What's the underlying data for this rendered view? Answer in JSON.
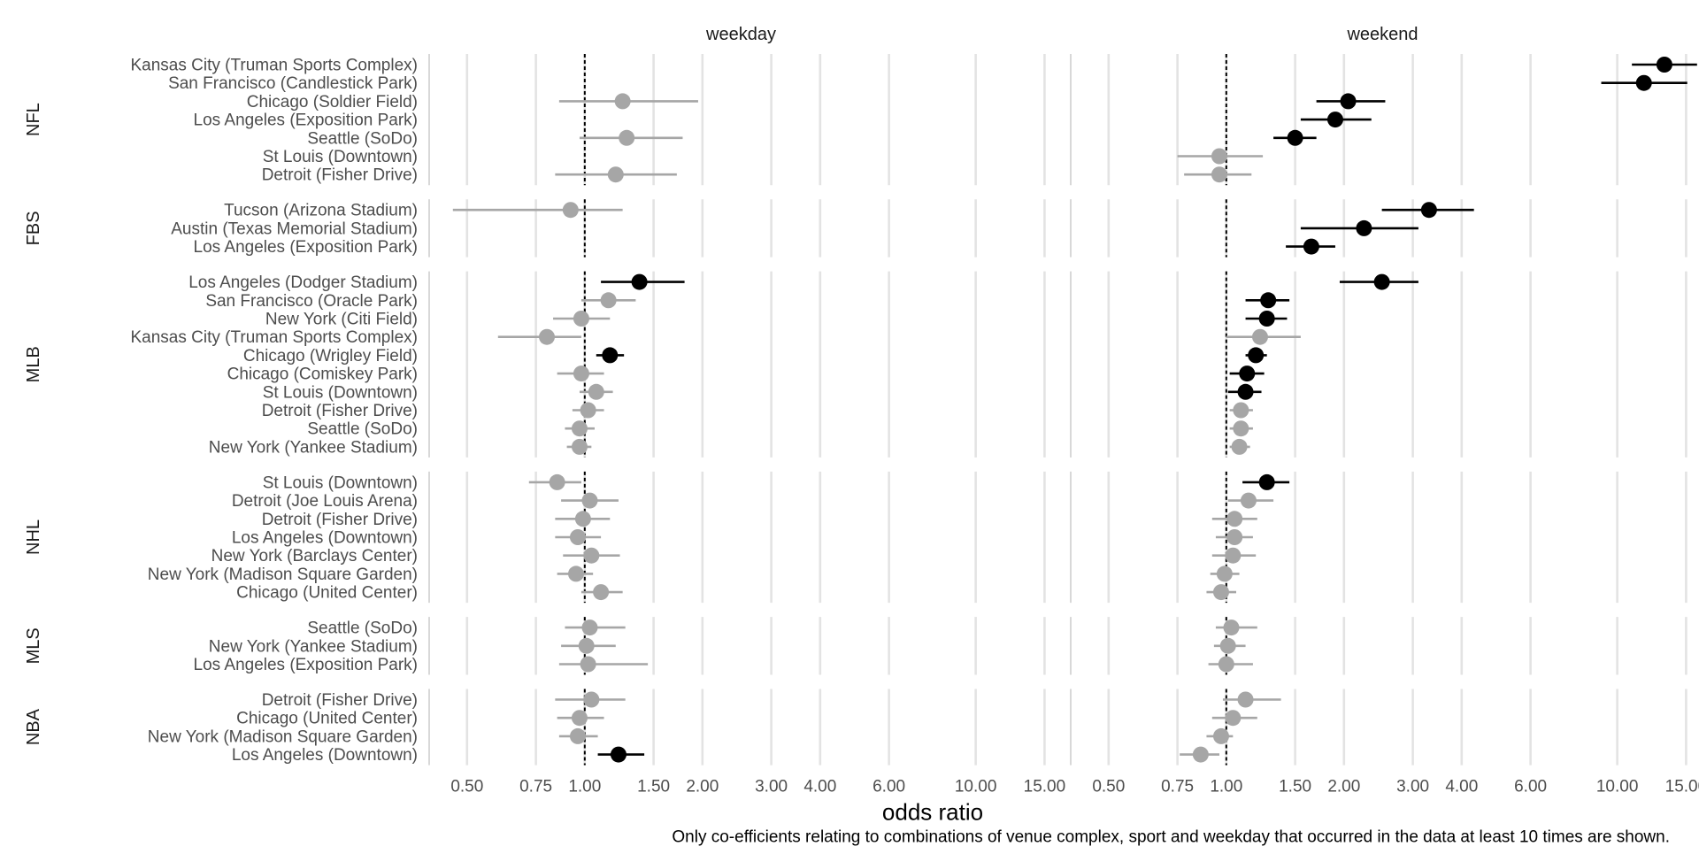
{
  "chart_data": {
    "type": "scatter",
    "subtype": "forest-plot (point estimate with confidence interval)",
    "x_scale": "log",
    "xlabel": "odds ratio",
    "caption": "Only co-efficients relating to combinations of venue complex, sport and weekday that occurred in the data at least 10 times are shown.",
    "x_ticks": [
      0.5,
      0.75,
      1,
      1.5,
      2,
      3,
      4,
      6,
      10,
      15
    ],
    "x_tick_labels": [
      "0.50",
      "0.75",
      "1.00",
      "1.50",
      "2.00",
      "3.00",
      "4.00",
      "6.00",
      "10.00",
      "15.00"
    ],
    "xlim": [
      0.4,
      17.5
    ],
    "reference_line": 1,
    "panels": [
      "weekday",
      "weekend"
    ],
    "legend_note": "black = significant, grey = not significant",
    "colors": {
      "significant": "#000000",
      "non_significant": "#a6a6a6",
      "grid": "#e3e3e3",
      "text": "#4d4d4d"
    },
    "groups": [
      {
        "sport": "NFL",
        "rows": [
          {
            "label": "Kansas City (Truman Sports Complex)",
            "weekday": null,
            "weekend": {
              "or": 13.2,
              "lo": 10.9,
              "hi": 16.0,
              "sig": true
            }
          },
          {
            "label": "San Francisco (Candlestick Park)",
            "weekday": null,
            "weekend": {
              "or": 11.7,
              "lo": 9.1,
              "hi": 15.1,
              "sig": true
            }
          },
          {
            "label": "Chicago (Soldier Field)",
            "weekday": {
              "or": 1.25,
              "lo": 0.86,
              "hi": 1.95,
              "sig": false
            },
            "weekend": {
              "or": 2.05,
              "lo": 1.7,
              "hi": 2.55,
              "sig": true
            }
          },
          {
            "label": "Los Angeles (Exposition Park)",
            "weekday": null,
            "weekend": {
              "or": 1.9,
              "lo": 1.55,
              "hi": 2.35,
              "sig": true
            }
          },
          {
            "label": "Seattle (SoDo)",
            "weekday": {
              "or": 1.28,
              "lo": 0.97,
              "hi": 1.78,
              "sig": false
            },
            "weekend": {
              "or": 1.5,
              "lo": 1.32,
              "hi": 1.7,
              "sig": true
            }
          },
          {
            "label": "St Louis (Downtown)",
            "weekday": null,
            "weekend": {
              "or": 0.96,
              "lo": 0.75,
              "hi": 1.24,
              "sig": false
            }
          },
          {
            "label": "Detroit (Fisher Drive)",
            "weekday": {
              "or": 1.2,
              "lo": 0.84,
              "hi": 1.72,
              "sig": false
            },
            "weekend": {
              "or": 0.96,
              "lo": 0.78,
              "hi": 1.16,
              "sig": false
            }
          }
        ]
      },
      {
        "sport": "FBS",
        "rows": [
          {
            "label": "Tucson (Arizona Stadium)",
            "weekday": {
              "or": 0.92,
              "lo": 0.46,
              "hi": 1.25,
              "sig": false
            },
            "weekend": {
              "or": 3.3,
              "lo": 2.5,
              "hi": 4.3,
              "sig": true
            }
          },
          {
            "label": "Austin (Texas Memorial Stadium)",
            "weekday": null,
            "weekend": {
              "or": 2.25,
              "lo": 1.55,
              "hi": 3.1,
              "sig": true
            }
          },
          {
            "label": "Los Angeles (Exposition Park)",
            "weekday": null,
            "weekend": {
              "or": 1.65,
              "lo": 1.42,
              "hi": 1.9,
              "sig": true
            }
          }
        ]
      },
      {
        "sport": "MLB",
        "rows": [
          {
            "label": "Los Angeles (Dodger Stadium)",
            "weekday": {
              "or": 1.38,
              "lo": 1.1,
              "hi": 1.8,
              "sig": true
            },
            "weekend": {
              "or": 2.5,
              "lo": 1.95,
              "hi": 3.1,
              "sig": true
            }
          },
          {
            "label": "San Francisco (Oracle Park)",
            "weekday": {
              "or": 1.15,
              "lo": 0.98,
              "hi": 1.35,
              "sig": false
            },
            "weekend": {
              "or": 1.28,
              "lo": 1.12,
              "hi": 1.45,
              "sig": true
            }
          },
          {
            "label": "New York (Citi Field)",
            "weekday": {
              "or": 0.98,
              "lo": 0.83,
              "hi": 1.16,
              "sig": false
            },
            "weekend": {
              "or": 1.27,
              "lo": 1.12,
              "hi": 1.43,
              "sig": true
            }
          },
          {
            "label": "Kansas City (Truman Sports Complex)",
            "weekday": {
              "or": 0.8,
              "lo": 0.6,
              "hi": 0.98,
              "sig": false
            },
            "weekend": {
              "or": 1.22,
              "lo": 1.0,
              "hi": 1.55,
              "sig": false
            }
          },
          {
            "label": "Chicago (Wrigley Field)",
            "weekday": {
              "or": 1.16,
              "lo": 1.07,
              "hi": 1.26,
              "sig": true
            },
            "weekend": {
              "or": 1.19,
              "lo": 1.12,
              "hi": 1.27,
              "sig": true
            }
          },
          {
            "label": "Chicago (Comiskey Park)",
            "weekday": {
              "or": 0.98,
              "lo": 0.85,
              "hi": 1.12,
              "sig": false
            },
            "weekend": {
              "or": 1.13,
              "lo": 1.02,
              "hi": 1.25,
              "sig": true
            }
          },
          {
            "label": "St Louis (Downtown)",
            "weekday": {
              "or": 1.07,
              "lo": 0.97,
              "hi": 1.18,
              "sig": false
            },
            "weekend": {
              "or": 1.12,
              "lo": 1.01,
              "hi": 1.23,
              "sig": true
            }
          },
          {
            "label": "Detroit (Fisher Drive)",
            "weekday": {
              "or": 1.02,
              "lo": 0.93,
              "hi": 1.12,
              "sig": false
            },
            "weekend": {
              "or": 1.09,
              "lo": 1.02,
              "hi": 1.17,
              "sig": false
            }
          },
          {
            "label": "Seattle (SoDo)",
            "weekday": {
              "or": 0.97,
              "lo": 0.89,
              "hi": 1.06,
              "sig": false
            },
            "weekend": {
              "or": 1.09,
              "lo": 1.02,
              "hi": 1.17,
              "sig": false
            }
          },
          {
            "label": "New York (Yankee Stadium)",
            "weekday": {
              "or": 0.97,
              "lo": 0.9,
              "hi": 1.04,
              "sig": false
            },
            "weekend": {
              "or": 1.08,
              "lo": 1.02,
              "hi": 1.15,
              "sig": false
            }
          }
        ]
      },
      {
        "sport": "NHL",
        "rows": [
          {
            "label": "St Louis (Downtown)",
            "weekday": {
              "or": 0.85,
              "lo": 0.72,
              "hi": 0.98,
              "sig": false
            },
            "weekend": {
              "or": 1.27,
              "lo": 1.1,
              "hi": 1.45,
              "sig": true
            }
          },
          {
            "label": "Detroit (Joe Louis Arena)",
            "weekday": {
              "or": 1.03,
              "lo": 0.87,
              "hi": 1.22,
              "sig": false
            },
            "weekend": {
              "or": 1.14,
              "lo": 1.01,
              "hi": 1.32,
              "sig": false
            }
          },
          {
            "label": "Detroit (Fisher Drive)",
            "weekday": {
              "or": 0.99,
              "lo": 0.84,
              "hi": 1.16,
              "sig": false
            },
            "weekend": {
              "or": 1.05,
              "lo": 0.92,
              "hi": 1.2,
              "sig": false
            }
          },
          {
            "label": "Los Angeles (Downtown)",
            "weekday": {
              "or": 0.96,
              "lo": 0.84,
              "hi": 1.1,
              "sig": false
            },
            "weekend": {
              "or": 1.05,
              "lo": 0.94,
              "hi": 1.17,
              "sig": false
            }
          },
          {
            "label": "New York (Barclays Center)",
            "weekday": {
              "or": 1.04,
              "lo": 0.88,
              "hi": 1.23,
              "sig": false
            },
            "weekend": {
              "or": 1.04,
              "lo": 0.92,
              "hi": 1.19,
              "sig": false
            }
          },
          {
            "label": "New York (Madison Square Garden)",
            "weekday": {
              "or": 0.95,
              "lo": 0.85,
              "hi": 1.05,
              "sig": false
            },
            "weekend": {
              "or": 0.99,
              "lo": 0.91,
              "hi": 1.08,
              "sig": false
            }
          },
          {
            "label": "Chicago (United Center)",
            "weekday": {
              "or": 1.1,
              "lo": 0.98,
              "hi": 1.25,
              "sig": false
            },
            "weekend": {
              "or": 0.97,
              "lo": 0.89,
              "hi": 1.06,
              "sig": false
            }
          }
        ]
      },
      {
        "sport": "MLS",
        "rows": [
          {
            "label": "Seattle (SoDo)",
            "weekday": {
              "or": 1.03,
              "lo": 0.89,
              "hi": 1.27,
              "sig": false
            },
            "weekend": {
              "or": 1.03,
              "lo": 0.94,
              "hi": 1.2,
              "sig": false
            }
          },
          {
            "label": "New York (Yankee Stadium)",
            "weekday": {
              "or": 1.01,
              "lo": 0.87,
              "hi": 1.2,
              "sig": false
            },
            "weekend": {
              "or": 1.01,
              "lo": 0.93,
              "hi": 1.12,
              "sig": false
            }
          },
          {
            "label": "Los Angeles (Exposition Park)",
            "weekday": {
              "or": 1.02,
              "lo": 0.86,
              "hi": 1.45,
              "sig": false
            },
            "weekend": {
              "or": 1.0,
              "lo": 0.9,
              "hi": 1.17,
              "sig": false
            }
          }
        ]
      },
      {
        "sport": "NBA",
        "rows": [
          {
            "label": "Detroit (Fisher Drive)",
            "weekday": {
              "or": 1.04,
              "lo": 0.84,
              "hi": 1.27,
              "sig": false
            },
            "weekend": {
              "or": 1.12,
              "lo": 0.98,
              "hi": 1.38,
              "sig": false
            }
          },
          {
            "label": "Chicago (United Center)",
            "weekday": {
              "or": 0.97,
              "lo": 0.85,
              "hi": 1.12,
              "sig": false
            },
            "weekend": {
              "or": 1.04,
              "lo": 0.92,
              "hi": 1.2,
              "sig": false
            }
          },
          {
            "label": "New York (Madison Square Garden)",
            "weekday": {
              "or": 0.96,
              "lo": 0.86,
              "hi": 1.08,
              "sig": false
            },
            "weekend": {
              "or": 0.97,
              "lo": 0.89,
              "hi": 1.04,
              "sig": false
            }
          },
          {
            "label": "Los Angeles (Downtown)",
            "weekday": {
              "or": 1.22,
              "lo": 1.08,
              "hi": 1.42,
              "sig": true
            },
            "weekend": {
              "or": 0.86,
              "lo": 0.76,
              "hi": 0.96,
              "sig": false
            }
          }
        ]
      }
    ]
  }
}
